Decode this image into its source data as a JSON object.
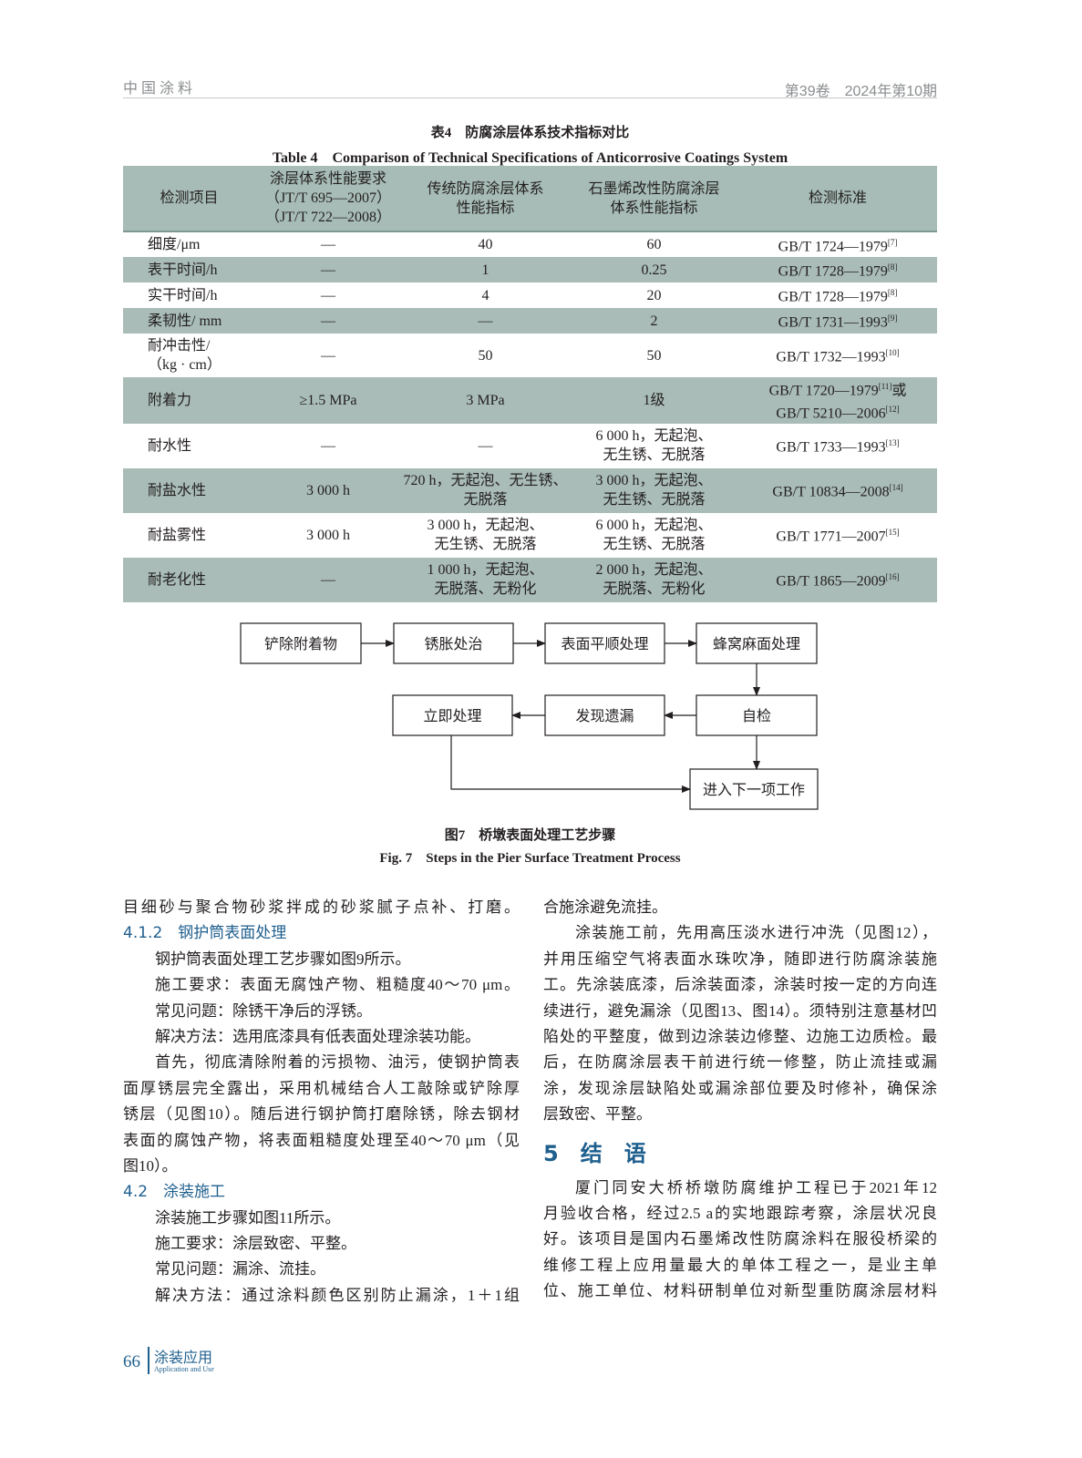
{
  "header": {
    "journal": "中国涂料",
    "issue": "第39卷　2024年第10期"
  },
  "table": {
    "caption_cn": "表4　防腐涂层体系技术指标对比",
    "caption_en": "Table 4　Comparison of Technical Specifications of Anticorrosive Coatings System",
    "columns": [
      "检测项目",
      "涂层体系性能要求\n（JT/T 695—2007）\n（JT/T 722—2008）",
      "传统防腐涂层体系\n性能指标",
      "石墨烯改性防腐涂层\n体系性能指标",
      "检测标准"
    ],
    "rows": [
      {
        "item": "细度/μm",
        "req": "—",
        "trad": "40",
        "graph": "60",
        "std": "GB/T 1724—1979",
        "ref": "[7]"
      },
      {
        "item": "表干时间/h",
        "req": "—",
        "trad": "1",
        "graph": "0.25",
        "std": "GB/T 1728—1979",
        "ref": "[8]"
      },
      {
        "item": "实干时间/h",
        "req": "—",
        "trad": "4",
        "graph": "20",
        "std": "GB/T 1728—1979",
        "ref": "[8]"
      },
      {
        "item": "柔韧性/ mm",
        "req": "—",
        "trad": "—",
        "graph": "2",
        "std": "GB/T 1731—1993",
        "ref": "[9]"
      },
      {
        "item": "耐冲击性/\n（kg · cm）",
        "req": "—",
        "trad": "50",
        "graph": "50",
        "std": "GB/T 1732—1993",
        "ref": "[10]"
      },
      {
        "item": "附着力",
        "req": "≥1.5 MPa",
        "trad": "3 MPa",
        "graph": "1级",
        "std": "GB/T 1720—1979",
        "ref": "[11]",
        "std_suffix": "或",
        "std2": "GB/T 5210—2006",
        "ref2": "[12]"
      },
      {
        "item": "耐水性",
        "req": "—",
        "trad": "—",
        "graph": "6 000 h，无起泡、\n无生锈、无脱落",
        "std": "GB/T 1733—1993",
        "ref": "[13]"
      },
      {
        "item": "耐盐水性",
        "req": "3 000 h",
        "trad": "720 h，无起泡、无生锈、\n无脱落",
        "graph": "3 000 h，无起泡、\n无生锈、无脱落",
        "std": "GB/T 10834—2008",
        "ref": "[14]"
      },
      {
        "item": "耐盐雾性",
        "req": "3 000 h",
        "trad": "3 000 h，无起泡、\n无生锈、无脱落",
        "graph": "6 000 h，无起泡、\n无生锈、无脱落",
        "std": "GB/T 1771—2007",
        "ref": "[15]"
      },
      {
        "item": "耐老化性",
        "req": "—",
        "trad": "1 000 h，无起泡、\n无脱落、无粉化",
        "graph": "2 000 h，无起泡、\n无脱落、无粉化",
        "std": "GB/T 1865—2009",
        "ref": "[16]"
      }
    ]
  },
  "figure": {
    "steps": [
      "铲除附着物",
      "锈胀处治",
      "表面平顺处理",
      "蜂窝麻面处理",
      "自检",
      "发现遗漏",
      "立即处理",
      "进入下一项工作"
    ],
    "caption_cn": "图7　桥墩表面处理工艺步骤",
    "caption_en": "Fig. 7　Steps in the Pier Surface Treatment Process"
  },
  "body": {
    "left": [
      {
        "t": "目细砂与聚合物砂浆拌成的砂浆腻子点补、打磨。"
      },
      {
        "t": "4.1.2　钢护筒表面处理",
        "k": "h"
      },
      {
        "t": "钢护筒表面处理工艺步骤如图9所示。",
        "i": 1
      },
      {
        "t": "施工要求：表面无腐蚀产物、粗糙度40～70 μm。",
        "i": 1
      },
      {
        "t": "常见问题：除锈干净后的浮锈。",
        "i": 1
      },
      {
        "t": "解决方法：选用底漆具有低表面处理涂装功能。",
        "i": 1
      },
      {
        "t": "首先，彻底清除附着的污损物、油污，使钢护筒表",
        "i": 1
      },
      {
        "t": "面厚锈层完全露出，采用机械结合人工敲除或铲除厚"
      },
      {
        "t": "锈层（见图10）。随后进行钢护筒打磨除锈，除去钢材"
      },
      {
        "t": "表面的腐蚀产物，将表面粗糙度处理至40～70 μm（见"
      },
      {
        "t": "图10）。"
      },
      {
        "t": "4.2　涂装施工",
        "k": "h"
      },
      {
        "t": "涂装施工步骤如图11所示。",
        "i": 1
      },
      {
        "t": "施工要求：涂层致密、平整。",
        "i": 1
      },
      {
        "t": "常见问题：漏涂、流挂。",
        "i": 1
      },
      {
        "t": "解决方法：通过涂料颜色区别防止漏涂，1＋1组",
        "i": 1
      }
    ],
    "right": [
      {
        "t": "合施涂避免流挂。"
      },
      {
        "t": "涂装施工前，先用高压淡水进行冲洗（见图12），",
        "i": 1
      },
      {
        "t": "并用压缩空气将表面水珠吹净，随即进行防腐涂装施"
      },
      {
        "t": "工。先涂装底漆，后涂装面漆，涂装时按一定的方向连"
      },
      {
        "t": "续进行，避免漏涂（见图13、图14）。须特别注意基材凹"
      },
      {
        "t": "陷处的平整度，做到边涂装边修整、边施工边质检。最"
      },
      {
        "t": "后，在防腐涂层表干前进行统一修整，防止流挂或漏"
      },
      {
        "t": "涂，发现涂层缺陷处或漏涂部位要及时修补，确保涂"
      },
      {
        "t": "层致密、平整。"
      },
      {
        "t": "5　结　语",
        "k": "h2"
      },
      {
        "t": "厦门同安大桥桥墩防腐维护工程已于2021年12",
        "i": 1
      },
      {
        "t": "月验收合格，经过2.5 a的实地跟踪考察，涂层状况良"
      },
      {
        "t": "好。该项目是国内石墨烯改性防腐涂料在服役桥梁的"
      },
      {
        "t": "维修工程上应用量最大的单体工程之一，是业主单"
      },
      {
        "t": "位、施工单位、材料研制单位对新型重防腐涂层材料"
      }
    ]
  },
  "footer": {
    "page": "66",
    "section": "涂装应用",
    "section_en": "Application and Use"
  }
}
